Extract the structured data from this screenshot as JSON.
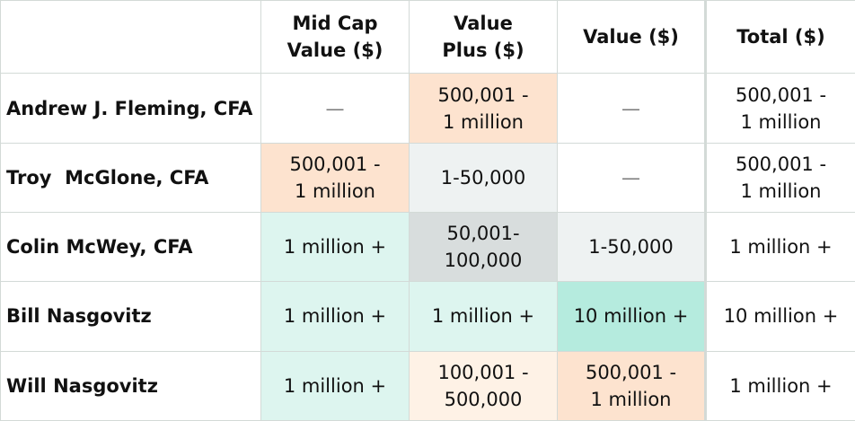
{
  "headers": [
    "",
    "Mid Cap\nValue ($)",
    "Value\nPlus ($)",
    "Value ($)",
    "Total ($)"
  ],
  "rows": [
    {
      "name": "Andrew J. Fleming, CFA",
      "cells": [
        "—",
        "500,001 -\n1 million",
        "—",
        "500,001 -\n1 million"
      ]
    },
    {
      "name": "Troy  McGlone, CFA",
      "cells": [
        "500,001 -\n1 million",
        "1-50,000",
        "—",
        "500,001 -\n1 million"
      ]
    },
    {
      "name": "Colin McWey, CFA",
      "cells": [
        "1 million +",
        "50,001-\n100,000",
        "1-50,000",
        "1 million +"
      ]
    },
    {
      "name": "Bill Nasgovitz",
      "cells": [
        "1 million +",
        "1 million +",
        "10 million +",
        "10 million +"
      ]
    },
    {
      "name": "Will Nasgovitz",
      "cells": [
        "1 million +",
        "100,001 -\n500,000",
        "500,001 -\n1 million",
        "1 million +"
      ]
    }
  ],
  "colors": {
    "peach": "#fde3cf",
    "light_gray": "#eef2f2",
    "gray": "#d8dddd",
    "mint": "#ddf5ef",
    "teal": "#b5ebde",
    "cream": "#fef2e6",
    "grid": "#d3dad7"
  }
}
